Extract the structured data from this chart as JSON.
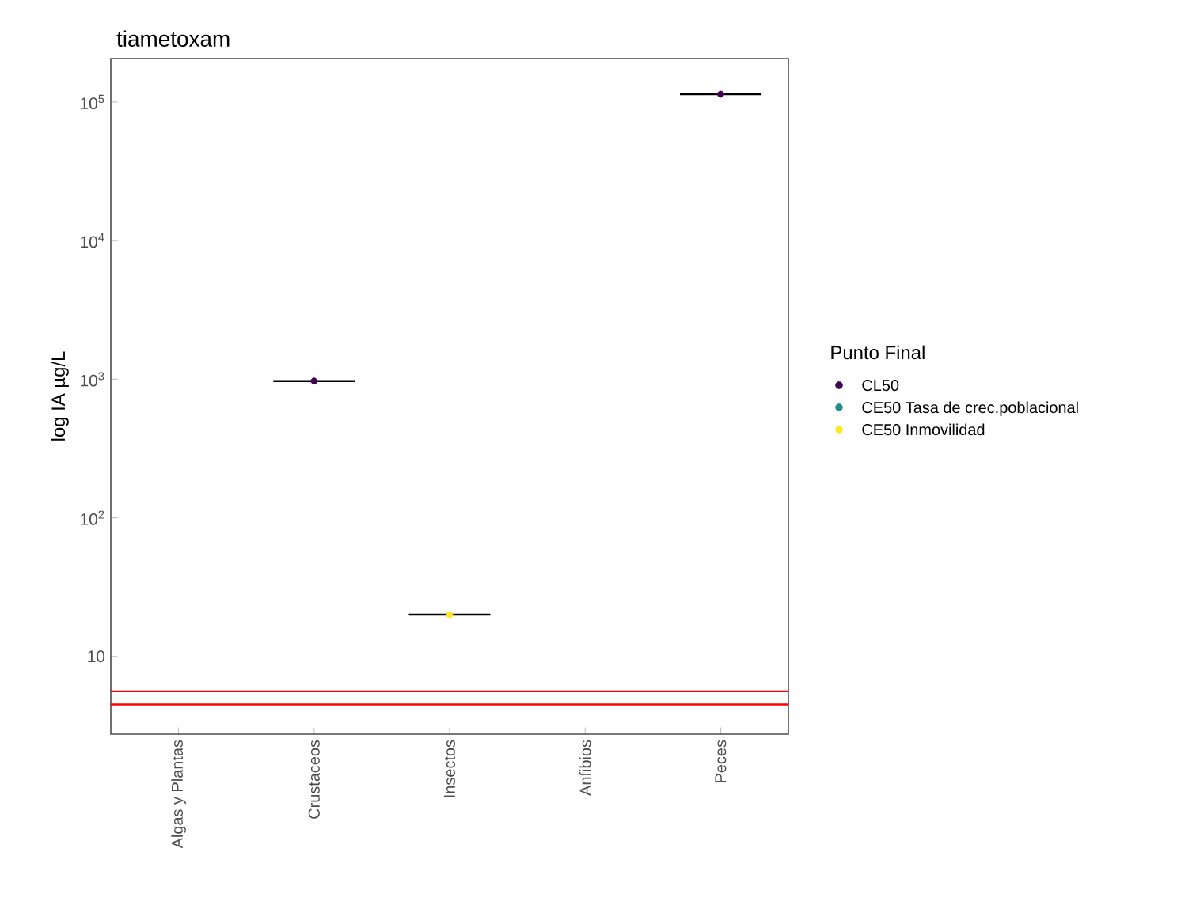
{
  "chart_data": {
    "type": "box",
    "title": "tiametoxam",
    "ylabel": "log IA  µg/L",
    "legend_title": "Punto Final",
    "categories": [
      "Algas y Plantas",
      "Crustaceos",
      "Insectos",
      "Anfibios",
      "Peces"
    ],
    "boxes": [
      null,
      {
        "low": 970,
        "q1": 970,
        "median": 970,
        "q3": 970,
        "high": 970
      },
      {
        "low": 20,
        "q1": 20,
        "median": 20,
        "q3": 20,
        "high": 20
      },
      null,
      {
        "low": 114000,
        "q1": 114000,
        "median": 114000,
        "q3": 114000,
        "high": 114000
      }
    ],
    "series": [
      {
        "name": "CL50",
        "type": "scatter",
        "color": "#440154",
        "values": [
          null,
          970,
          null,
          null,
          114000
        ]
      },
      {
        "name": "CE50 Tasa de crec.poblacional",
        "type": "scatter",
        "color": "#21908c",
        "values": [
          null,
          null,
          null,
          null,
          null
        ]
      },
      {
        "name": "CE50 Inmovilidad",
        "type": "scatter",
        "color": "#fde725",
        "values": [
          null,
          null,
          20,
          null,
          null
        ]
      }
    ],
    "log": "y",
    "ylim": [
      2.75,
      206000
    ],
    "yticks": [
      10,
      {
        "value": 100,
        "label": "10$^{2}$"
      },
      {
        "value": 1000,
        "label": "10$^{3}$"
      },
      {
        "value": 10000,
        "label": "10$^{4}$"
      },
      {
        "value": 100000,
        "label": "10$^{5}$"
      }
    ],
    "ref_lines": [
      {
        "axis": "y",
        "value": 5.6,
        "color": "#ff0000"
      },
      {
        "axis": "y",
        "value": 4.5,
        "color": "#ff0000"
      }
    ],
    "grid": false,
    "legend": "right",
    "marker": "circle"
  }
}
